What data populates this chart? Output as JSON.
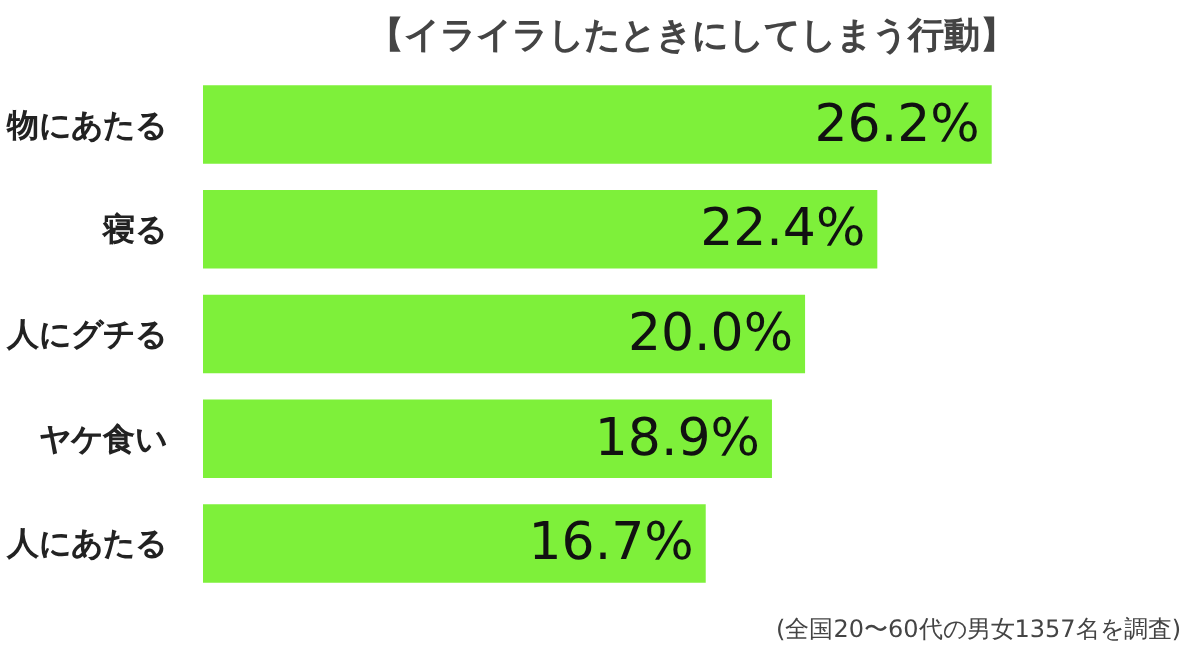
{
  "chart_data": {
    "type": "bar",
    "orientation": "horizontal",
    "title": "【イライラしたときにしてしまう行動】",
    "categories": [
      "物にあたる",
      "寝る",
      "人にグチる",
      "ヤケ食い",
      "人にあたる"
    ],
    "values": [
      26.2,
      22.4,
      20.0,
      18.9,
      16.7
    ],
    "value_labels": [
      "26.2%",
      "22.4%",
      "20.0%",
      "18.9%",
      "16.7%"
    ],
    "color": "#7ef03a",
    "annotations": [
      "(全国20〜60代の男女1357名を調査)"
    ]
  }
}
